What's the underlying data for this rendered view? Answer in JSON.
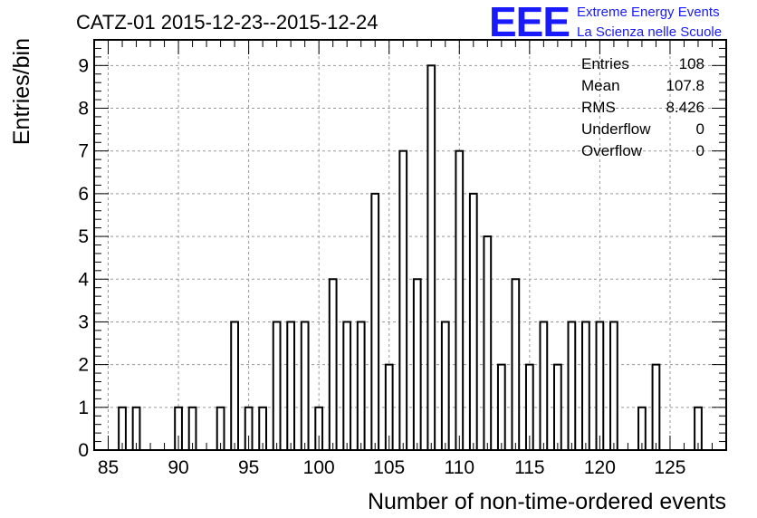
{
  "chart_data": {
    "type": "bar",
    "title": "CATZ-01 2015-12-23--2015-12-24",
    "xlabel": "Number of non-time-ordered events",
    "ylabel": "Entries/bin",
    "xlim": [
      84,
      129
    ],
    "ylim": [
      0,
      9.6
    ],
    "x_ticks": [
      85,
      90,
      95,
      100,
      105,
      110,
      115,
      120,
      125
    ],
    "y_ticks": [
      0,
      1,
      2,
      3,
      4,
      5,
      6,
      7,
      8,
      9
    ],
    "grid": true,
    "bins": [
      {
        "x": 86,
        "value": 1
      },
      {
        "x": 87,
        "value": 1
      },
      {
        "x": 90,
        "value": 1
      },
      {
        "x": 91,
        "value": 1
      },
      {
        "x": 93,
        "value": 1
      },
      {
        "x": 94,
        "value": 3
      },
      {
        "x": 95,
        "value": 1
      },
      {
        "x": 96,
        "value": 1
      },
      {
        "x": 97,
        "value": 3
      },
      {
        "x": 98,
        "value": 3
      },
      {
        "x": 99,
        "value": 3
      },
      {
        "x": 100,
        "value": 1
      },
      {
        "x": 101,
        "value": 4
      },
      {
        "x": 102,
        "value": 3
      },
      {
        "x": 103,
        "value": 3
      },
      {
        "x": 104,
        "value": 6
      },
      {
        "x": 105,
        "value": 2
      },
      {
        "x": 106,
        "value": 7
      },
      {
        "x": 107,
        "value": 4
      },
      {
        "x": 108,
        "value": 9
      },
      {
        "x": 109,
        "value": 3
      },
      {
        "x": 110,
        "value": 7
      },
      {
        "x": 111,
        "value": 6
      },
      {
        "x": 112,
        "value": 5
      },
      {
        "x": 113,
        "value": 2
      },
      {
        "x": 114,
        "value": 4
      },
      {
        "x": 115,
        "value": 2
      },
      {
        "x": 116,
        "value": 3
      },
      {
        "x": 117,
        "value": 2
      },
      {
        "x": 118,
        "value": 3
      },
      {
        "x": 119,
        "value": 3
      },
      {
        "x": 120,
        "value": 3
      },
      {
        "x": 121,
        "value": 3
      },
      {
        "x": 123,
        "value": 1
      },
      {
        "x": 124,
        "value": 2
      },
      {
        "x": 127,
        "value": 1
      }
    ],
    "stats": [
      {
        "label": "Entries",
        "value": "108"
      },
      {
        "label": "Mean",
        "value": "107.8"
      },
      {
        "label": "RMS",
        "value": "8.426"
      },
      {
        "label": "Underflow",
        "value": "0"
      },
      {
        "label": "Overflow",
        "value": "0"
      }
    ]
  },
  "logo": {
    "letters": "EEE",
    "line1": "Extreme Energy Events",
    "line2": "La Scienza nelle Scuole",
    "color": "#1a1aff"
  }
}
